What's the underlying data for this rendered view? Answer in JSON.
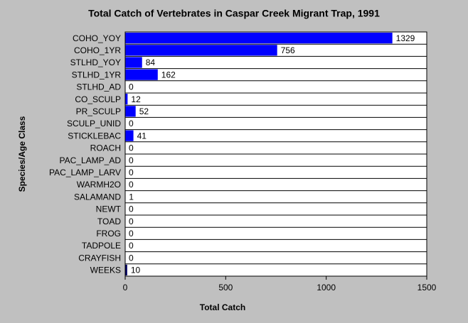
{
  "chart_data": {
    "type": "bar",
    "orientation": "horizontal",
    "title": "Total Catch of Vertebrates in Caspar Creek Migrant Trap, 1991",
    "xlabel": "Total Catch",
    "ylabel": "Species/Age Class",
    "categories": [
      "COHO_YOY",
      "COHO_1YR",
      "STLHD_YOY",
      "STLHD_1YR",
      "STLHD_AD",
      "CO_SCULP",
      "PR_SCULP",
      "SCULP_UNID",
      "STICKLEBAC",
      "ROACH",
      "PAC_LAMP_AD",
      "PAC_LAMP_LARV",
      "WARMH2O",
      "SALAMAND",
      "NEWT",
      "TOAD",
      "FROG",
      "TADPOLE",
      "CRAYFISH",
      "WEEKS"
    ],
    "values": [
      1329,
      756,
      84,
      162,
      0,
      12,
      52,
      0,
      41,
      0,
      0,
      0,
      0,
      1,
      0,
      0,
      0,
      0,
      0,
      10
    ],
    "colors": [
      "#0000ff",
      "#0000ff",
      "#0000ff",
      "#0000ff",
      "#0000ff",
      "#0000ff",
      "#0000ff",
      "#0000ff",
      "#0000ff",
      "#0000ff",
      "#0000ff",
      "#0000ff",
      "#0000ff",
      "#00a000",
      "#0000ff",
      "#0000ff",
      "#0000ff",
      "#0000ff",
      "#0000ff",
      "#000060"
    ],
    "xlim": [
      0,
      1500
    ],
    "xticks": [
      0,
      500,
      1000,
      1500
    ]
  }
}
